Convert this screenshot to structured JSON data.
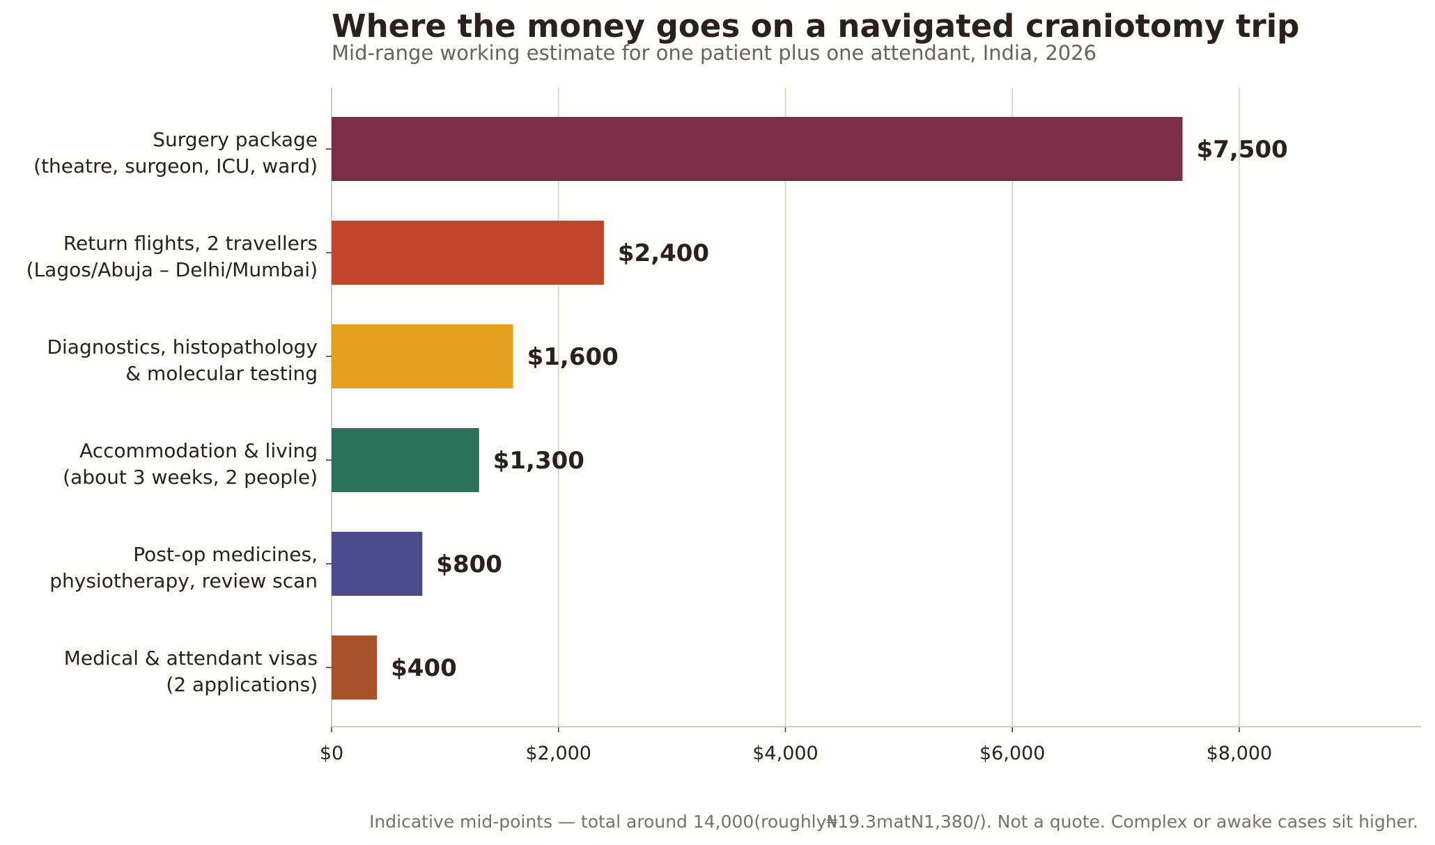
{
  "chart_data": {
    "type": "bar",
    "orientation": "horizontal",
    "title": "Where the money goes on a navigated craniotomy trip",
    "subtitle": "Mid-range working estimate for one patient plus one attendant, India, 2026",
    "categories": [
      [
        "Surgery package",
        "(theatre, surgeon, ICU, ward)"
      ],
      [
        "Return flights, 2 travellers",
        "(Lagos/Abuja – Delhi/Mumbai)"
      ],
      [
        "Diagnostics, histopathology",
        "& molecular testing"
      ],
      [
        "Accommodation & living",
        "(about 3 weeks, 2 people)"
      ],
      [
        "Post-op medicines,",
        "physiotherapy, review scan"
      ],
      [
        "Medical & attendant visas",
        "(2 applications)"
      ]
    ],
    "values": [
      7500,
      2400,
      1600,
      1300,
      800,
      400
    ],
    "value_labels": [
      "$7,500",
      "$2,400",
      "$1,600",
      "$1,300",
      "$800",
      "$400"
    ],
    "colors": [
      "#792c48",
      "#c0472a",
      "#e2a01c",
      "#2d6e5c",
      "#4a4c8a",
      "#a6532c"
    ],
    "xlim": [
      0,
      9600
    ],
    "xticks": [
      0,
      2000,
      4000,
      6000,
      8000
    ],
    "xtick_labels": [
      "$0",
      "$2,000",
      "$4,000",
      "$6,000",
      "$8,000"
    ],
    "xlabel": "",
    "ylabel": "",
    "grid": "vertical",
    "legend": "none",
    "footnote": "Indicative mid-points — total around 14,000(roughly₦19.3matN1,380/). Not a quote. Complex or awake cases sit higher."
  }
}
